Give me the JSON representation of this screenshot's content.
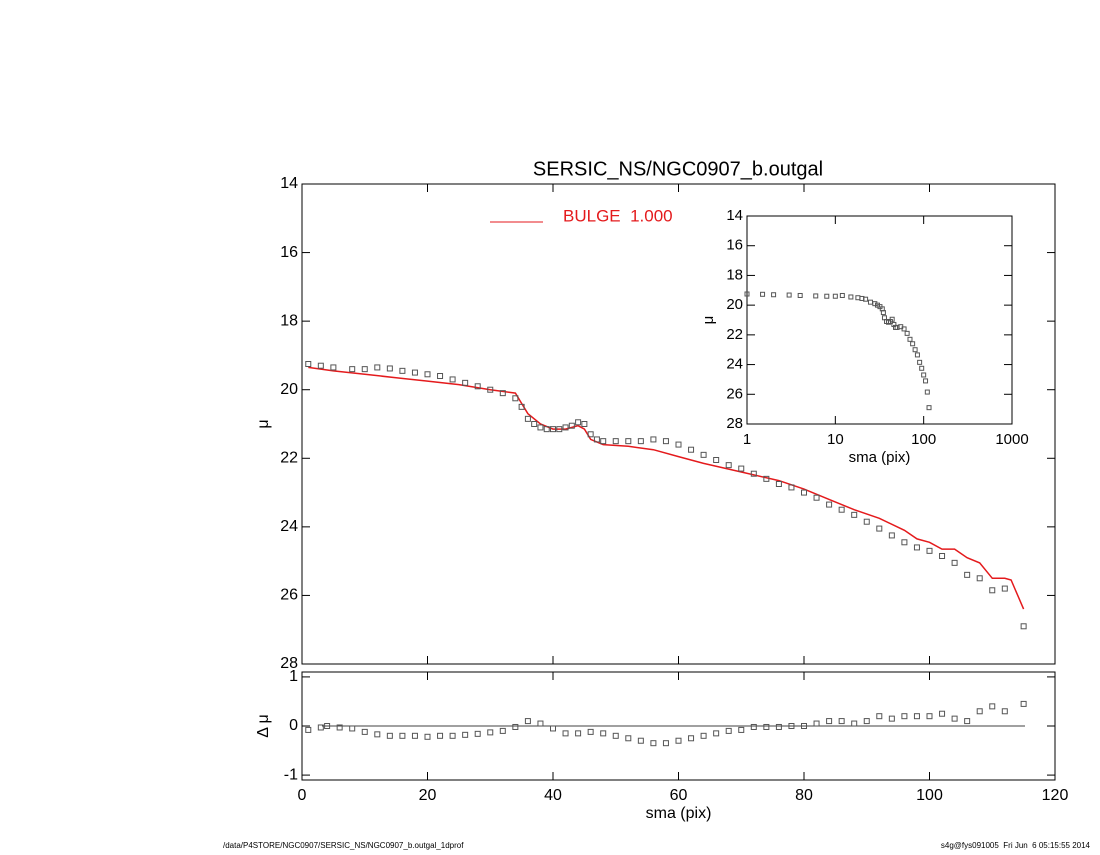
{
  "chart_data": [
    {
      "type": "scatter",
      "title": "SERSIC_NS/NGC0907_b.outgal",
      "ylabel": "μ",
      "xlim": [
        0,
        120
      ],
      "ylim": [
        14,
        28
      ],
      "y_inverted": true,
      "x_tick_labels": false,
      "xticks": [
        0,
        20,
        40,
        60,
        80,
        100,
        120
      ],
      "yticks": [
        14,
        16,
        18,
        20,
        22,
        24,
        26,
        28
      ],
      "points": {
        "color": "#555555",
        "x": [
          1,
          3,
          5,
          8,
          10,
          12,
          14,
          16,
          18,
          20,
          22,
          24,
          26,
          28,
          30,
          32,
          34,
          35,
          36,
          37,
          38,
          39,
          40,
          41,
          42,
          43,
          44,
          45,
          46,
          47,
          48,
          50,
          52,
          54,
          56,
          58,
          60,
          62,
          64,
          66,
          68,
          70,
          72,
          74,
          76,
          78,
          80,
          82,
          84,
          86,
          88,
          90,
          92,
          94,
          96,
          98,
          100,
          102,
          104,
          106,
          108,
          110,
          112,
          115
        ],
        "values": [
          19.25,
          19.3,
          19.35,
          19.4,
          19.4,
          19.35,
          19.38,
          19.45,
          19.5,
          19.55,
          19.6,
          19.7,
          19.8,
          19.9,
          20.0,
          20.1,
          20.25,
          20.5,
          20.85,
          21.0,
          21.1,
          21.15,
          21.15,
          21.15,
          21.1,
          21.05,
          20.95,
          21.0,
          21.3,
          21.45,
          21.5,
          21.5,
          21.5,
          21.5,
          21.45,
          21.5,
          21.6,
          21.75,
          21.9,
          22.05,
          22.2,
          22.3,
          22.45,
          22.6,
          22.75,
          22.85,
          23.0,
          23.15,
          23.35,
          23.5,
          23.65,
          23.85,
          24.05,
          24.25,
          24.45,
          24.6,
          24.7,
          24.85,
          25.05,
          25.4,
          25.5,
          25.85,
          25.8,
          26.9
        ]
      },
      "legend_loc": "upper left",
      "series": [
        {
          "name": "BULGE  1.000",
          "color": "#e41a1c",
          "x": [
            1,
            5,
            10,
            15,
            20,
            25,
            30,
            34,
            35,
            36,
            38,
            40,
            42,
            44,
            45,
            46,
            48,
            52,
            56,
            60,
            64,
            70,
            76,
            80,
            84,
            88,
            92,
            96,
            98,
            100,
            102,
            104,
            106,
            108,
            110,
            112,
            113,
            115
          ],
          "values": [
            19.35,
            19.45,
            19.55,
            19.65,
            19.75,
            19.85,
            20.0,
            20.1,
            20.4,
            20.7,
            21.0,
            21.15,
            21.15,
            21.05,
            21.15,
            21.45,
            21.6,
            21.65,
            21.75,
            21.95,
            22.15,
            22.4,
            22.65,
            22.9,
            23.2,
            23.5,
            23.75,
            24.1,
            24.35,
            24.45,
            24.65,
            24.65,
            24.9,
            25.05,
            25.5,
            25.5,
            25.55,
            26.4
          ]
        }
      ]
    },
    {
      "type": "scatter",
      "ylabel": "Δ μ",
      "xlabel": "sma (pix)",
      "xlim": [
        0,
        120
      ],
      "ylim": [
        -1.1,
        1.1
      ],
      "x_tick_labels": true,
      "reference_y": 0,
      "xticks": [
        0,
        20,
        40,
        60,
        80,
        100,
        120
      ],
      "yticks": [
        -1,
        0,
        1
      ],
      "points": {
        "color": "#555555",
        "x": [
          1,
          3,
          4,
          6,
          8,
          10,
          12,
          14,
          16,
          18,
          20,
          22,
          24,
          26,
          28,
          30,
          32,
          34,
          36,
          38,
          40,
          42,
          44,
          46,
          48,
          50,
          52,
          54,
          56,
          58,
          60,
          62,
          64,
          66,
          68,
          70,
          72,
          74,
          76,
          78,
          80,
          82,
          84,
          86,
          88,
          90,
          92,
          94,
          96,
          98,
          100,
          102,
          104,
          106,
          108,
          110,
          112,
          115
        ],
        "values": [
          -0.08,
          -0.03,
          0.0,
          -0.03,
          -0.05,
          -0.12,
          -0.17,
          -0.2,
          -0.2,
          -0.2,
          -0.22,
          -0.2,
          -0.2,
          -0.18,
          -0.16,
          -0.13,
          -0.1,
          -0.02,
          0.1,
          0.05,
          -0.05,
          -0.15,
          -0.15,
          -0.12,
          -0.15,
          -0.2,
          -0.25,
          -0.3,
          -0.35,
          -0.35,
          -0.3,
          -0.25,
          -0.2,
          -0.15,
          -0.1,
          -0.08,
          -0.02,
          -0.02,
          -0.02,
          0.0,
          0.0,
          0.05,
          0.1,
          0.1,
          0.05,
          0.1,
          0.2,
          0.15,
          0.2,
          0.2,
          0.2,
          0.25,
          0.15,
          0.1,
          0.3,
          0.4,
          0.3,
          0.45
        ]
      }
    },
    {
      "type": "scatter",
      "ylabel": "μ",
      "xlabel": "sma (pix)",
      "log_x": true,
      "xlim": [
        1,
        1000
      ],
      "ylim": [
        14,
        28
      ],
      "y_inverted": true,
      "x_tick_labels": true,
      "xticks": [
        1,
        10,
        100,
        1000
      ],
      "yticks": [
        14,
        16,
        18,
        20,
        22,
        24,
        26,
        28
      ],
      "points": {
        "color": "#555555",
        "x": [
          1,
          1.5,
          2,
          3,
          4,
          6,
          8,
          10,
          12,
          15,
          18,
          20,
          22,
          25,
          28,
          30,
          32,
          34,
          35,
          36,
          38,
          40,
          42,
          44,
          46,
          48,
          50,
          55,
          60,
          65,
          70,
          75,
          80,
          85,
          90,
          95,
          100,
          105,
          110,
          115
        ],
        "values": [
          19.25,
          19.27,
          19.3,
          19.32,
          19.35,
          19.38,
          19.4,
          19.4,
          19.35,
          19.45,
          19.5,
          19.55,
          19.6,
          19.8,
          19.9,
          20.0,
          20.1,
          20.25,
          20.5,
          20.85,
          21.1,
          21.15,
          21.1,
          20.95,
          21.3,
          21.5,
          21.5,
          21.45,
          21.6,
          21.9,
          22.3,
          22.6,
          23.0,
          23.35,
          23.85,
          24.25,
          24.7,
          25.1,
          25.85,
          26.9
        ]
      }
    }
  ],
  "footer": {
    "left": "/data/P4STORE/NGC0907/SERSIC_NS/NGC0907_b.outgal_1dprof",
    "right": "s4g@fys091005  Fri Jun  6 05:15:55 2014"
  }
}
